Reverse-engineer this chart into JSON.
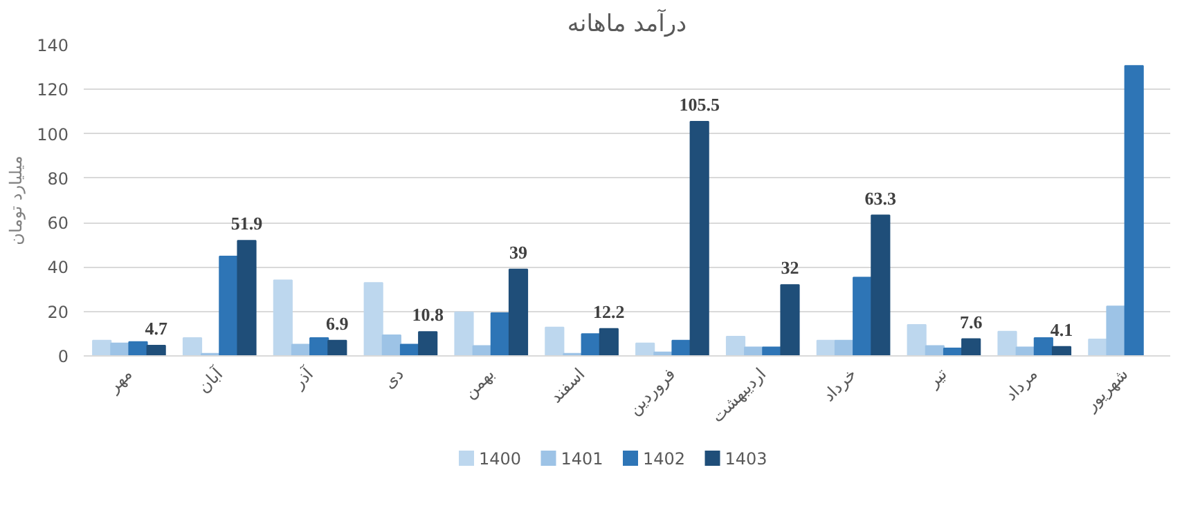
{
  "chart_data": {
    "type": "bar",
    "title": "درآمد ماهانه",
    "ylabel": "میلیارد تومان",
    "categories": [
      "مهر",
      "آبان",
      "آذر",
      "دی",
      "بهمن",
      "اسفند",
      "فروردین",
      "اردیبهشت",
      "خرداد",
      "تیر",
      "مرداد",
      "شهریور"
    ],
    "series": [
      {
        "name": "1400",
        "color": "#bdd7ee",
        "values": [
          6.9,
          8.1,
          34.1,
          32.9,
          19.7,
          12.8,
          5.7,
          8.7,
          6.9,
          14.0,
          11.0,
          7.5
        ]
      },
      {
        "name": "1401",
        "color": "#9dc3e6",
        "values": [
          5.7,
          1.0,
          5.1,
          9.3,
          4.5,
          1.0,
          1.6,
          3.9,
          6.9,
          4.5,
          3.9,
          22.3
        ]
      },
      {
        "name": "1402",
        "color": "#2e75b6",
        "values": [
          6.3,
          44.8,
          8.1,
          5.1,
          19.3,
          9.9,
          6.9,
          3.9,
          35.3,
          3.4,
          8.1,
          130.6
        ]
      },
      {
        "name": "1403",
        "color": "#1f4e79",
        "values": [
          4.7,
          51.9,
          6.9,
          10.8,
          39,
          12.2,
          105.5,
          32,
          63.3,
          7.6,
          4.1,
          null
        ],
        "value_labels": [
          "4.7",
          "51.9",
          "6.9",
          "10.8",
          "39",
          "12.2",
          "105.5",
          "32",
          "63.3",
          "7.6",
          "4.1",
          null
        ]
      }
    ],
    "ylim": [
      0,
      140
    ],
    "yticks": [
      0,
      20,
      40,
      60,
      80,
      100,
      120,
      140
    ],
    "grid": "y",
    "legend": "bottom"
  }
}
